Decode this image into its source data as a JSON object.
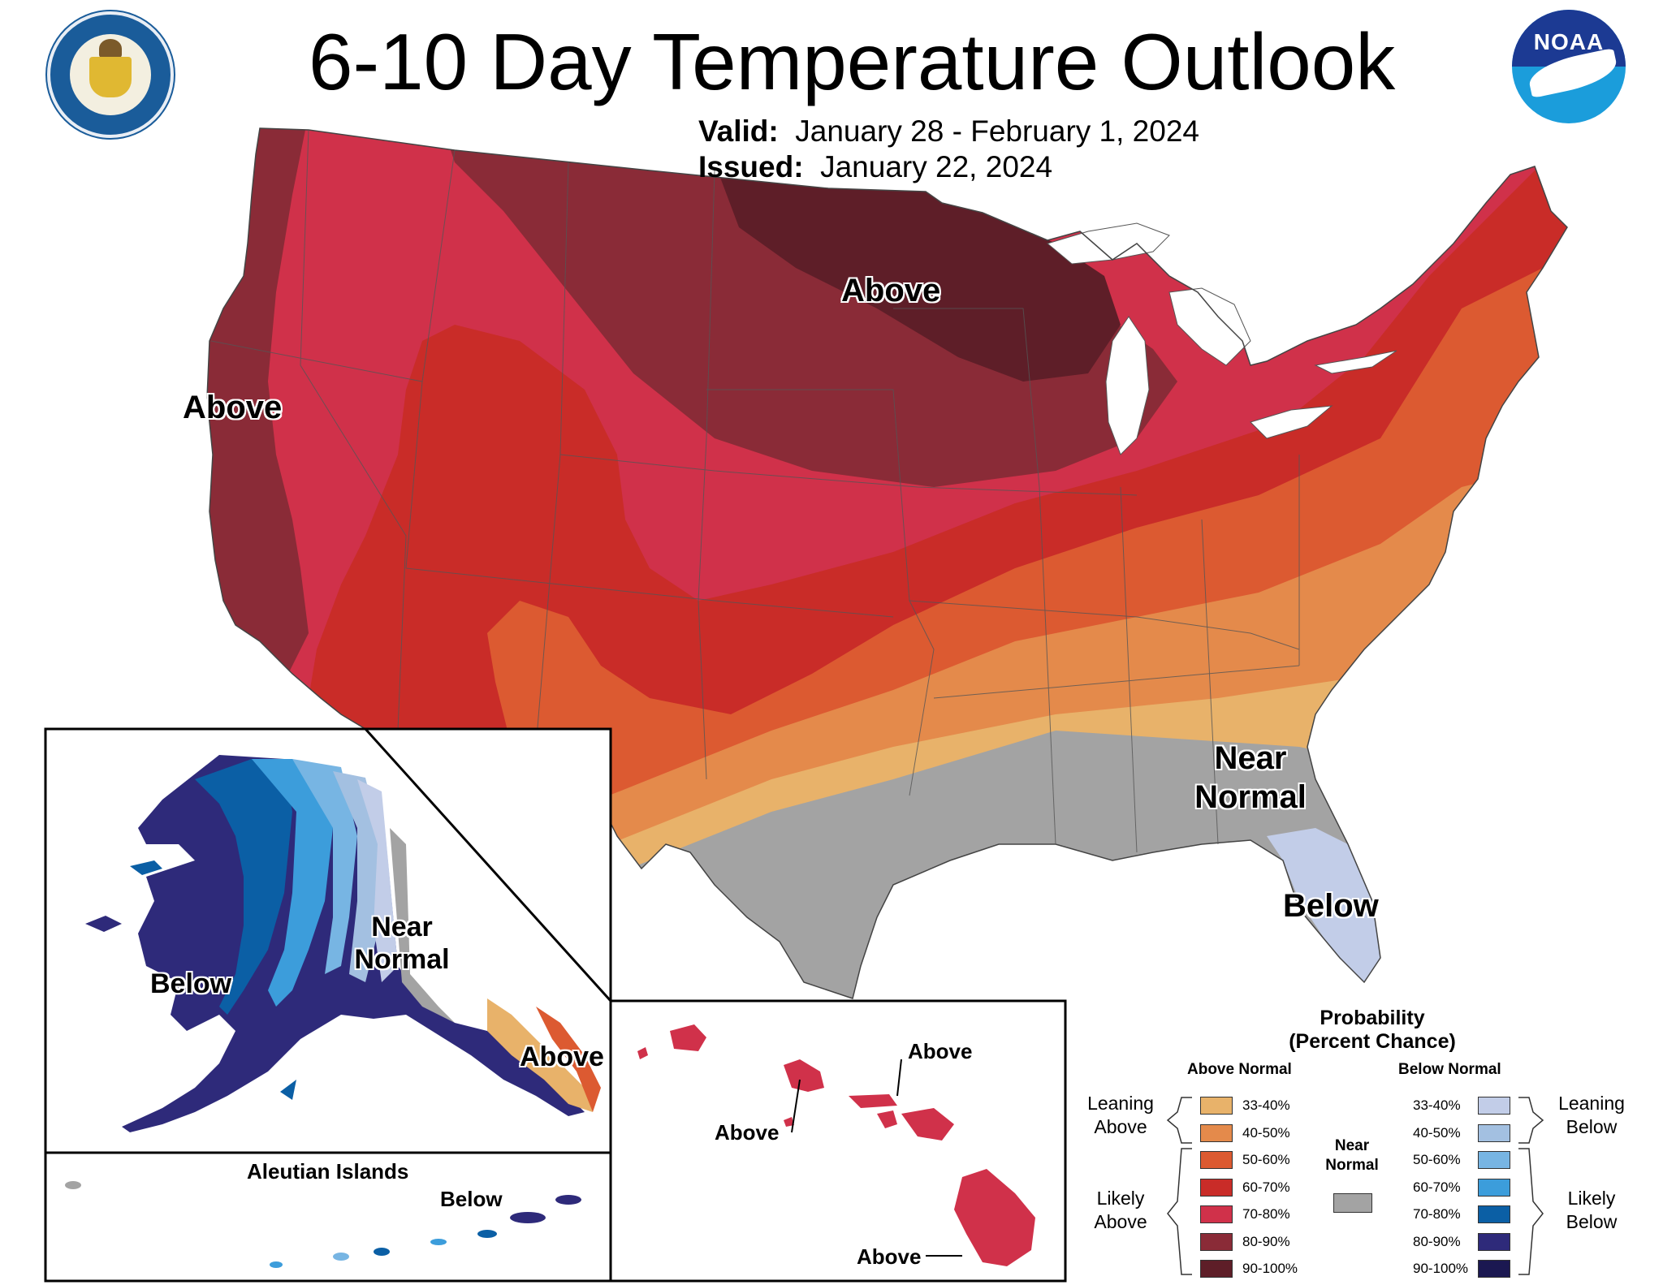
{
  "header": {
    "title": "6-10 Day Temperature Outlook",
    "valid_label": "Valid:",
    "valid_value": "January 28 - February 1, 2024",
    "issued_label": "Issued:",
    "issued_value": "January 22, 2024"
  },
  "logos": {
    "commerce_seal_text": "DEPARTMENT OF COMMERCE · UNITED STATES OF AMERICA",
    "noaa_text": "NOAA"
  },
  "map_labels": {
    "north_central": "Above",
    "west_coast": "Above",
    "southeast_line1": "Near",
    "southeast_line2": "Normal",
    "florida": "Below",
    "alaska_west": "Below",
    "alaska_near_line1": "Near",
    "alaska_near_line2": "Normal",
    "alaska_southeast": "Above",
    "aleutian_title": "Aleutian Islands",
    "aleutian_label": "Below",
    "hawaii_kauai": "Above",
    "hawaii_oahu": "Above",
    "hawaii_big_island": "Above"
  },
  "colors": {
    "above_33_40": "#e8b26a",
    "above_40_50": "#e48a4b",
    "above_50_60": "#dc5a31",
    "above_60_70": "#c92c28",
    "above_70_80": "#d0314a",
    "above_80_90": "#8a2b37",
    "above_90_100": "#5e1e28",
    "near_normal": "#a3a3a3",
    "below_33_40": "#c2cde8",
    "below_40_50": "#a3c0e1",
    "below_50_60": "#77b5e3",
    "below_60_70": "#3c9ddb",
    "below_70_80": "#0b5fa5",
    "below_80_90": "#2e2a7a",
    "below_90_100": "#1b1851"
  },
  "legend": {
    "title_line1": "Probability",
    "title_line2": "(Percent Chance)",
    "above_header": "Above Normal",
    "below_header": "Below Normal",
    "near_line1": "Near",
    "near_line2": "Normal",
    "leaning_above_line1": "Leaning",
    "leaning_above_line2": "Above",
    "likely_above_line1": "Likely",
    "likely_above_line2": "Above",
    "leaning_below_line1": "Leaning",
    "leaning_below_line2": "Below",
    "likely_below_line1": "Likely",
    "likely_below_line2": "Below",
    "above_rows": [
      "33-40%",
      "40-50%",
      "50-60%",
      "60-70%",
      "70-80%",
      "80-90%",
      "90-100%"
    ],
    "below_rows": [
      "33-40%",
      "40-50%",
      "50-60%",
      "60-70%",
      "70-80%",
      "80-90%",
      "90-100%"
    ]
  }
}
